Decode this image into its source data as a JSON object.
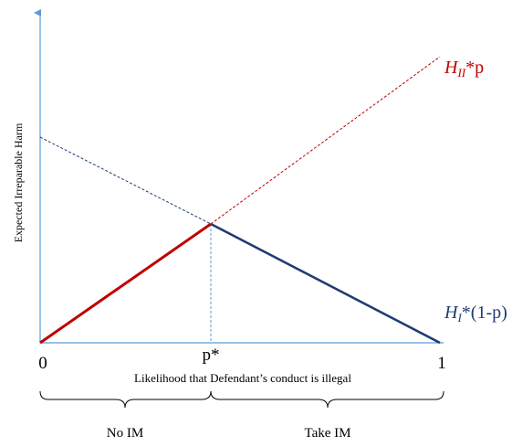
{
  "axes": {
    "ylabel": "Expected Irreparable Harm",
    "xlabel": "Likelihood that Defendant’s conduct is illegal",
    "tick_left": "0",
    "tick_mid": "p*",
    "tick_right": "1"
  },
  "lines": {
    "h2": {
      "label_main": "H",
      "label_sub": "II",
      "label_tail": "*p",
      "color": "#c00000"
    },
    "h1": {
      "label_main": "H",
      "label_sub": "I",
      "label_tail": "*(1-p)",
      "color": "#1f3b73"
    }
  },
  "regions": {
    "left": "No IM",
    "right": "Take IM"
  },
  "colors": {
    "axis": "#5b9bd5",
    "red": "#c00000",
    "navy": "#1f3b73"
  }
}
